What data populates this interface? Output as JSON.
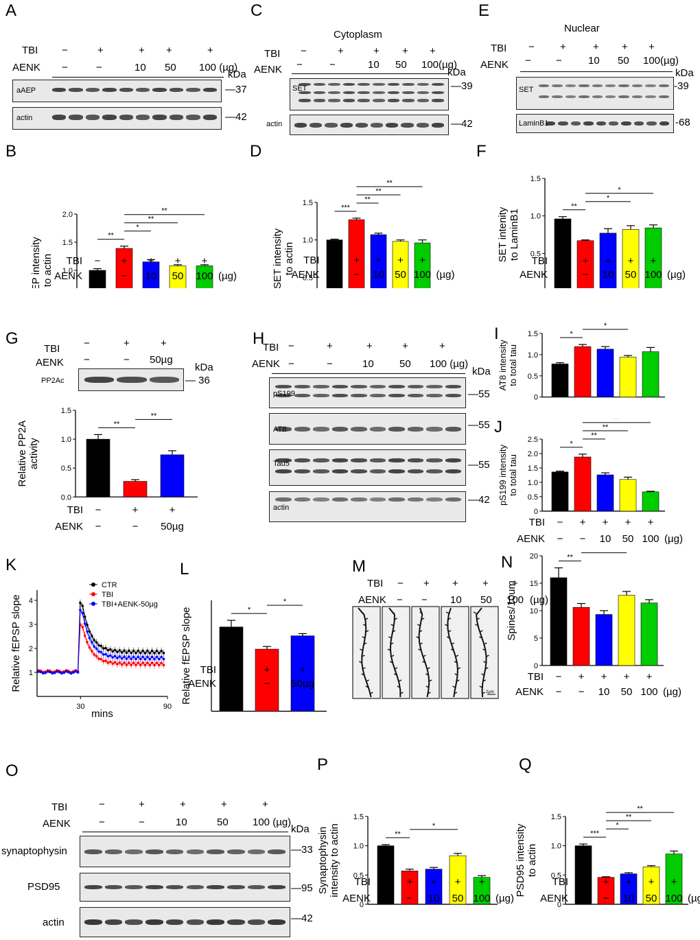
{
  "panels": {
    "A": {
      "letter": "A",
      "title": "",
      "header_vals": [
        "−",
        "+",
        "+",
        "+",
        "+"
      ],
      "aenk_vals": [
        "−",
        "−",
        "10",
        "50",
        "100 (µg)"
      ],
      "blots": [
        {
          "label": "aAEP",
          "kda": "37"
        },
        {
          "label": "actin",
          "kda": "42"
        }
      ]
    },
    "C": {
      "letter": "C",
      "title": "Cytoplasm",
      "header_vals": [
        "−",
        "+",
        "+",
        "+",
        "+"
      ],
      "aenk_vals": [
        "−",
        "−",
        "10",
        "50",
        "100(µg)"
      ],
      "blots": [
        {
          "label": "SET",
          "kda": "39"
        },
        {
          "label": "actin",
          "kda": "42"
        }
      ]
    },
    "E": {
      "letter": "E",
      "title": "Nuclear",
      "header_vals": [
        "−",
        "+",
        "+",
        "+",
        "+"
      ],
      "aenk_vals": [
        "−",
        "−",
        "10",
        "50",
        "100(µg)"
      ],
      "blots": [
        {
          "label": "SET",
          "kda": "39"
        },
        {
          "label": "LaminB1",
          "kda": "68"
        }
      ]
    },
    "G": {
      "letter": "G",
      "header_vals": [
        "−",
        "+",
        "+"
      ],
      "aenk_vals": [
        "−",
        "−",
        "50µg"
      ],
      "blots": [
        {
          "label": "PP2Ac",
          "kda": "36"
        }
      ]
    },
    "H": {
      "letter": "H",
      "header_vals": [
        "−",
        "+",
        "+",
        "+",
        "+"
      ],
      "aenk_vals": [
        "−",
        "−",
        "10",
        "50",
        "100 (µg)"
      ],
      "blots": [
        {
          "label": "pS199",
          "kda": "55"
        },
        {
          "label": "AT8",
          "kda": "55"
        },
        {
          "label": "Tau5",
          "kda": "55"
        },
        {
          "label": "actin",
          "kda": "42"
        }
      ]
    },
    "K": {
      "letter": "K"
    },
    "M": {
      "letter": "M",
      "header_vals": [
        "−",
        "+",
        "+",
        "+",
        "+"
      ],
      "aenk_vals": [
        "−",
        "−",
        "10",
        "50",
        "100"
      ],
      "unit": "(µg)",
      "scale_text": "2µm"
    },
    "O": {
      "letter": "O",
      "header_vals": [
        "−",
        "+",
        "+",
        "+",
        "+"
      ],
      "aenk_vals": [
        "−",
        "−",
        "10",
        "50",
        "100 (µg)"
      ],
      "blots": [
        {
          "label": "synaptophysin",
          "kda": "33"
        },
        {
          "label": "PSD95",
          "kda": "95"
        },
        {
          "label": "actin",
          "kda": "42"
        }
      ]
    }
  },
  "common": {
    "tbi": "TBI",
    "aenk": "AENK",
    "kda": "kDa"
  },
  "chart_data": [
    {
      "id": "B",
      "type": "bar",
      "letter": "B",
      "ylabel": "aAEP intensity\nto actin",
      "ylim": [
        0,
        2.0
      ],
      "yticks": [
        "0",
        "0.5",
        "1.0",
        "1.5",
        "2.0"
      ],
      "values": [
        1.0,
        1.39,
        1.15,
        1.08,
        1.08
      ],
      "errors": [
        0.03,
        0.04,
        0.04,
        0.02,
        0.02
      ],
      "tbi": [
        "−",
        "+",
        "+",
        "+",
        "+"
      ],
      "aenk": [
        "−",
        "−",
        "10",
        "50",
        "100"
      ],
      "unit": "(µg)",
      "sig": [
        {
          "from": 0,
          "to": 1,
          "label": "**"
        },
        {
          "from": 1,
          "to": 2,
          "label": "*"
        },
        {
          "from": 1,
          "to": 3,
          "label": "**"
        },
        {
          "from": 1,
          "to": 4,
          "label": "**"
        }
      ]
    },
    {
      "id": "D",
      "type": "bar",
      "letter": "D",
      "ylabel": "SET intensity\nto actin",
      "ylim": [
        0,
        1.5
      ],
      "yticks": [
        "0",
        "0.5",
        "1.0",
        "1.5"
      ],
      "values": [
        1.0,
        1.27,
        1.07,
        0.98,
        0.96
      ],
      "errors": [
        0.01,
        0.02,
        0.02,
        0.02,
        0.04
      ],
      "tbi": [
        "−",
        "+",
        "+",
        "+",
        "+"
      ],
      "aenk": [
        "−",
        "−",
        "10",
        "50",
        "100"
      ],
      "unit": "(µg)",
      "sig": [
        {
          "from": 0,
          "to": 1,
          "label": "***"
        },
        {
          "from": 1,
          "to": 2,
          "label": "**"
        },
        {
          "from": 1,
          "to": 3,
          "label": "**"
        },
        {
          "from": 1,
          "to": 4,
          "label": "**"
        }
      ]
    },
    {
      "id": "F",
      "type": "bar",
      "letter": "F",
      "ylabel": "SET intenity\nto LaminB1",
      "ylim": [
        0,
        1.5
      ],
      "yticks": [
        "0",
        "0.5",
        "1.0",
        "1.5"
      ],
      "values": [
        0.96,
        0.67,
        0.77,
        0.82,
        0.84
      ],
      "errors": [
        0.03,
        0.01,
        0.06,
        0.05,
        0.04
      ],
      "tbi": [
        "−",
        "+",
        "+",
        "+",
        "+"
      ],
      "aenk": [
        "−",
        "−",
        "10",
        "50",
        "100"
      ],
      "unit": "(µg)",
      "sig": [
        {
          "from": 0,
          "to": 1,
          "label": "**"
        },
        {
          "from": 1,
          "to": 3,
          "label": "*"
        },
        {
          "from": 1,
          "to": 4,
          "label": "*"
        }
      ]
    },
    {
      "id": "Gc",
      "type": "bar",
      "letter": "",
      "ylabel": "Relative PP2A\nactivity",
      "ylim": [
        0,
        1.5
      ],
      "yticks": [
        "0.0",
        "0.5",
        "1.0",
        "1.5"
      ],
      "values": [
        1.0,
        0.27,
        0.73
      ],
      "errors": [
        0.08,
        0.03,
        0.07
      ],
      "colors": [
        "#000000",
        "#ff0000",
        "#0000ff"
      ],
      "tbi": [
        "−",
        "+",
        "+"
      ],
      "aenk": [
        "−",
        "−",
        "50µg"
      ],
      "unit": "",
      "sig": [
        {
          "from": 0,
          "to": 1,
          "label": "**"
        },
        {
          "from": 1,
          "to": 2,
          "label": "**"
        }
      ]
    },
    {
      "id": "I",
      "type": "bar",
      "letter": "I",
      "ylabel": "AT8 intensity\nto total tau",
      "ylim": [
        0,
        1.5
      ],
      "yticks": [
        "0",
        "0.5",
        "1.0",
        "1.5"
      ],
      "values": [
        0.78,
        1.19,
        1.13,
        0.94,
        1.07
      ],
      "errors": [
        0.03,
        0.05,
        0.06,
        0.04,
        0.1
      ],
      "tbi": [],
      "aenk": [],
      "unit": "",
      "sig": [
        {
          "from": 0,
          "to": 1,
          "label": "*"
        },
        {
          "from": 1,
          "to": 3,
          "label": "*"
        }
      ]
    },
    {
      "id": "J",
      "type": "bar",
      "letter": "J",
      "ylabel": "pS199 intensity\nto total tau",
      "ylim": [
        0,
        2.5
      ],
      "yticks": [
        "0",
        "0.5",
        "1.0",
        "1.5",
        "2.0",
        "2.5"
      ],
      "values": [
        1.36,
        1.88,
        1.26,
        1.1,
        0.67
      ],
      "errors": [
        0.03,
        0.1,
        0.07,
        0.08,
        0.02
      ],
      "tbi": [
        "−",
        "+",
        "+",
        "+",
        "+"
      ],
      "aenk": [
        "−",
        "−",
        "10",
        "50",
        "100"
      ],
      "unit": "(µg)",
      "sig": [
        {
          "from": 0,
          "to": 1,
          "label": "*"
        },
        {
          "from": 1,
          "to": 2,
          "label": "**"
        },
        {
          "from": 1,
          "to": 3,
          "label": "**"
        },
        {
          "from": 1,
          "to": 4,
          "label": "***"
        }
      ]
    },
    {
      "id": "L",
      "type": "bar",
      "letter": "L",
      "ylabel": "Relative fEPSP slope",
      "ylim": [
        0,
        5
      ],
      "yticks": [],
      "values": [
        3.8,
        2.8,
        3.4
      ],
      "errors": [
        0.3,
        0.12,
        0.1
      ],
      "colors": [
        "#000000",
        "#ff0000",
        "#0000ff"
      ],
      "tbi": [
        "−",
        "+",
        "+"
      ],
      "aenk": [
        "−",
        "−",
        "50µg"
      ],
      "unit": "",
      "sig": [
        {
          "from": 0,
          "to": 1,
          "label": "*"
        },
        {
          "from": 1,
          "to": 2,
          "label": "*"
        }
      ]
    },
    {
      "id": "N",
      "type": "bar",
      "letter": "N",
      "ylabel": "Spines/10um",
      "ylim": [
        0,
        20
      ],
      "yticks": [
        "0",
        "5",
        "10",
        "15",
        "20"
      ],
      "values": [
        16.0,
        10.6,
        9.3,
        12.8,
        11.4
      ],
      "errors": [
        1.8,
        0.7,
        0.7,
        0.7,
        0.6
      ],
      "tbi": [
        "−",
        "+",
        "+",
        "+",
        "+"
      ],
      "aenk": [
        "−",
        "−",
        "10",
        "50",
        "100"
      ],
      "unit": "(µg)",
      "sig": [
        {
          "from": 0,
          "to": 1,
          "label": "**"
        },
        {
          "from": 1,
          "to": 3,
          "label": "*"
        }
      ]
    },
    {
      "id": "P",
      "type": "bar",
      "letter": "P",
      "ylabel": "Synaptophysin\nintensity to actin",
      "ylim": [
        0,
        1.5
      ],
      "yticks": [
        "0",
        "0.5",
        "1.0",
        "1.5"
      ],
      "values": [
        1.0,
        0.57,
        0.6,
        0.83,
        0.46
      ],
      "errors": [
        0.02,
        0.03,
        0.03,
        0.04,
        0.03
      ],
      "tbi": [
        "−",
        "+",
        "+",
        "+",
        "+"
      ],
      "aenk": [
        "−",
        "−",
        "10",
        "50",
        "100"
      ],
      "unit": "(µg)",
      "sig": [
        {
          "from": 0,
          "to": 1,
          "label": "**"
        },
        {
          "from": 1,
          "to": 3,
          "label": "*"
        }
      ]
    },
    {
      "id": "Q",
      "type": "bar",
      "letter": "Q",
      "ylabel": "PSD95 intensity\nto actin",
      "ylim": [
        0,
        1.5
      ],
      "yticks": [
        "0",
        "0.5",
        "1.0",
        "1.5"
      ],
      "values": [
        1.0,
        0.46,
        0.52,
        0.64,
        0.86
      ],
      "errors": [
        0.03,
        0.01,
        0.02,
        0.02,
        0.05
      ],
      "tbi": [
        "−",
        "+",
        "+",
        "+",
        "+"
      ],
      "aenk": [
        "−",
        "−",
        "10",
        "50",
        "100"
      ],
      "unit": "(µg)",
      "sig": [
        {
          "from": 0,
          "to": 1,
          "label": "***"
        },
        {
          "from": 1,
          "to": 2,
          "label": "*"
        },
        {
          "from": 1,
          "to": 3,
          "label": "**"
        },
        {
          "from": 1,
          "to": 4,
          "label": "**"
        }
      ]
    },
    {
      "id": "K",
      "type": "scatter",
      "letter": "K",
      "ylabel": "Relative fEPSP slope",
      "xlabel": "mins",
      "xticks": [
        "30",
        "90"
      ],
      "xlim": [
        0,
        90
      ],
      "ylim": [
        0,
        5
      ],
      "yticks": [
        "1",
        "2",
        "3",
        "4"
      ],
      "legend": [
        "CTR",
        "TBI",
        "TBI+AENK-50µg"
      ],
      "legend_position": "top-right",
      "series": [
        {
          "name": "CTR",
          "color": "#000000",
          "baseline": 1.0,
          "peak": 3.9,
          "plateau": 1.85
        },
        {
          "name": "TBI",
          "color": "#ff0000",
          "baseline": 1.05,
          "peak": 3.0,
          "plateau": 1.35
        },
        {
          "name": "TBI+AENK-50µg",
          "color": "#0000ff",
          "baseline": 1.0,
          "peak": 3.6,
          "plateau": 1.6
        }
      ]
    }
  ],
  "bar_colors": [
    "#000000",
    "#ff0000",
    "#0000ff",
    "#ffff00",
    "#00cc00"
  ]
}
